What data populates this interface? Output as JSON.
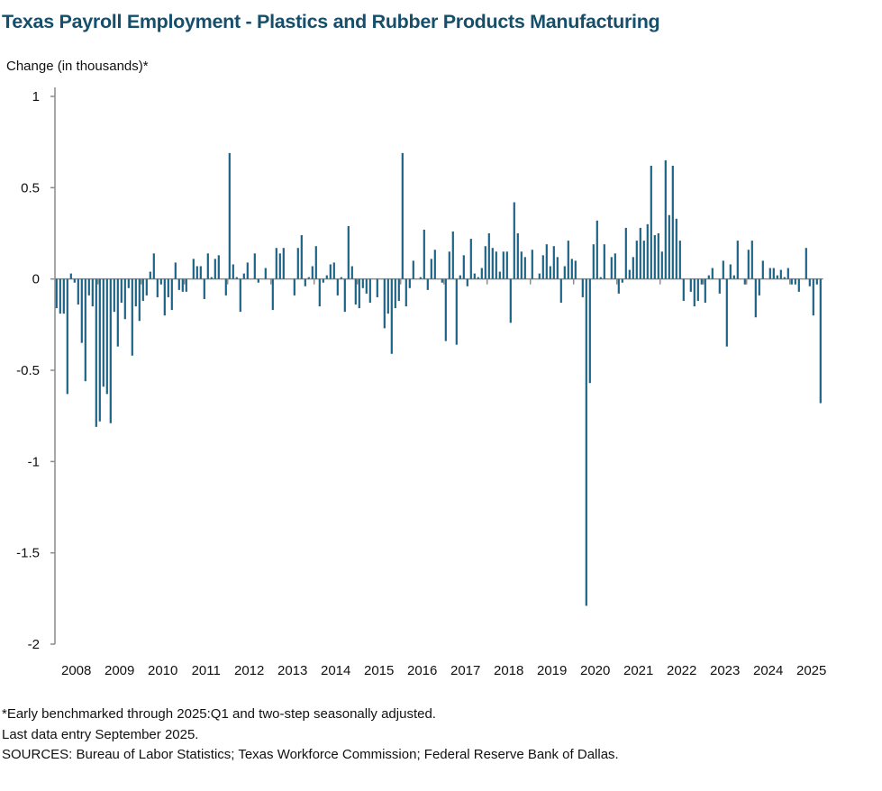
{
  "chart_data": {
    "type": "bar",
    "title": "Texas Payroll Employment - Plastics and Rubber Products Manufacturing",
    "ylabel": "Change (in thousands)*",
    "xlabel": "",
    "ylim": [
      -2,
      1
    ],
    "yticks": [
      "1",
      "0.5",
      "0",
      "-0.5",
      "-1",
      "-1.5",
      "-2"
    ],
    "ytick_values": [
      1,
      0.5,
      0,
      -0.5,
      -1,
      -1.5,
      -2
    ],
    "xticks": [
      "2008",
      "2009",
      "2010",
      "2011",
      "2012",
      "2013",
      "2014",
      "2015",
      "2016",
      "2017",
      "2018",
      "2019",
      "2020",
      "2021",
      "2022",
      "2023",
      "2024",
      "2025"
    ],
    "frequency": "monthly",
    "grid": false,
    "legend": "none",
    "bar_color": "#1b6487",
    "axis_color": "#8c8c8c",
    "title_color": "#164f6b",
    "values": [
      -0.16,
      -0.19,
      -0.19,
      -0.63,
      0.03,
      -0.02,
      -0.14,
      -0.35,
      -0.56,
      -0.09,
      -0.15,
      -0.81,
      -0.78,
      -0.59,
      -0.63,
      -0.79,
      -0.18,
      -0.37,
      -0.13,
      -0.22,
      -0.05,
      -0.42,
      -0.15,
      -0.23,
      -0.12,
      -0.09,
      0.04,
      0.14,
      -0.1,
      -0.03,
      -0.2,
      -0.1,
      -0.17,
      0.09,
      -0.06,
      -0.07,
      -0.07,
      0.0,
      0.11,
      0.07,
      0.07,
      -0.11,
      0.14,
      0.01,
      0.11,
      0.13,
      0.0,
      -0.09,
      0.69,
      0.08,
      0.01,
      -0.18,
      0.03,
      0.09,
      0.0,
      0.14,
      -0.02,
      0.0,
      0.06,
      0.0,
      -0.17,
      0.17,
      0.14,
      0.17,
      0.0,
      0.0,
      -0.09,
      0.17,
      0.24,
      -0.04,
      0.01,
      0.07,
      0.18,
      -0.15,
      -0.02,
      0.02,
      0.08,
      0.09,
      -0.09,
      0.01,
      -0.18,
      0.29,
      0.07,
      -0.14,
      -0.16,
      -0.05,
      -0.08,
      -0.13,
      0.0,
      -0.1,
      0.0,
      -0.27,
      -0.19,
      -0.41,
      -0.16,
      -0.12,
      0.69,
      -0.15,
      -0.05,
      0.1,
      0.0,
      0.01,
      0.27,
      -0.06,
      0.11,
      0.16,
      0.0,
      -0.02,
      -0.34,
      0.15,
      0.26,
      -0.36,
      0.02,
      0.13,
      -0.04,
      0.22,
      0.03,
      0.01,
      0.06,
      0.18,
      0.25,
      0.17,
      0.15,
      0.04,
      0.15,
      0.15,
      -0.24,
      0.42,
      0.25,
      0.15,
      0.12,
      0.0,
      0.16,
      0.0,
      0.03,
      0.13,
      0.19,
      0.07,
      0.18,
      0.12,
      -0.13,
      0.07,
      0.21,
      0.11,
      0.1,
      0.0,
      -0.1,
      -1.79,
      -0.57,
      0.19,
      0.32,
      0.01,
      0.19,
      0.0,
      0.12,
      0.14,
      -0.08,
      -0.02,
      0.28,
      0.05,
      0.12,
      0.21,
      0.28,
      0.21,
      0.3,
      0.62,
      0.24,
      0.25,
      0.15,
      0.65,
      0.35,
      0.62,
      0.33,
      0.21,
      -0.12,
      0.0,
      -0.07,
      -0.15,
      -0.12,
      -0.03,
      -0.13,
      0.02,
      0.06,
      0.0,
      -0.08,
      0.1,
      -0.37,
      0.08,
      0.02,
      0.21,
      0.0,
      -0.03,
      0.16,
      0.21,
      -0.21,
      -0.09,
      0.1,
      0.0,
      0.06,
      0.06,
      0.02,
      0.05,
      0.01,
      0.06,
      -0.03,
      -0.03,
      -0.07,
      0.0,
      0.17,
      -0.04,
      -0.2,
      -0.03,
      -0.68
    ]
  },
  "notes": [
    "*Early benchmarked through 2025:Q1 and two-step seasonally adjusted.",
    "Last data entry September 2025.",
    "SOURCES:  Bureau of Labor Statistics; Texas Workforce Commission;  Federal Reserve Bank of Dallas."
  ]
}
